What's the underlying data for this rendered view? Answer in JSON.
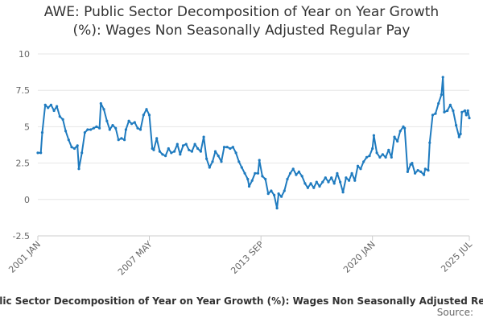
{
  "chart_data": {
    "type": "line",
    "title_line1": "AWE: Public Sector Decomposition of Year on Year Growth",
    "title_line2": "(%): Wages Non Seasonally Adjusted Regular Pay",
    "legend_label": "AWE: Public Sector Decomposition of Year on Year Growth (%): Wages Non Seasonally Adjusted Regular Pay",
    "source_label": "Source:",
    "ylim": [
      -2.5,
      10
    ],
    "y_ticks": [
      {
        "value": -2.5,
        "label": "-2.5"
      },
      {
        "value": 0,
        "label": "0"
      },
      {
        "value": 2.5,
        "label": "2.5"
      },
      {
        "value": 5,
        "label": "5"
      },
      {
        "value": 7.5,
        "label": "7.5"
      },
      {
        "value": 10,
        "label": "10"
      }
    ],
    "x_ticks": [
      {
        "x": 2001.0,
        "label": "2001 JAN"
      },
      {
        "x": 2007.33,
        "label": "2007 MAY"
      },
      {
        "x": 2013.67,
        "label": "2013 SEP"
      },
      {
        "x": 2020.0,
        "label": "2020 JAN"
      },
      {
        "x": 2025.5,
        "label": "2025 JUL"
      }
    ],
    "xlim": [
      2001.0,
      2025.5
    ],
    "color": "#1f7bbf",
    "series": [
      {
        "name": "AWE: Public Sector Decomposition of Year on Year Growth (%): Wages Non Seasonally Adjusted Regular Pay",
        "points": [
          [
            2001.0,
            3.2
          ],
          [
            2001.17,
            3.2
          ],
          [
            2001.25,
            4.6
          ],
          [
            2001.42,
            6.5
          ],
          [
            2001.58,
            6.3
          ],
          [
            2001.75,
            6.5
          ],
          [
            2001.92,
            6.1
          ],
          [
            2002.08,
            6.4
          ],
          [
            2002.25,
            5.7
          ],
          [
            2002.42,
            5.5
          ],
          [
            2002.58,
            4.7
          ],
          [
            2002.75,
            4.1
          ],
          [
            2002.92,
            3.6
          ],
          [
            2003.08,
            3.5
          ],
          [
            2003.25,
            3.7
          ],
          [
            2003.33,
            2.1
          ],
          [
            2003.5,
            3.2
          ],
          [
            2003.67,
            4.6
          ],
          [
            2003.83,
            4.8
          ],
          [
            2004.0,
            4.8
          ],
          [
            2004.17,
            4.9
          ],
          [
            2004.33,
            5.0
          ],
          [
            2004.5,
            4.9
          ],
          [
            2004.58,
            6.6
          ],
          [
            2004.75,
            6.2
          ],
          [
            2004.92,
            5.4
          ],
          [
            2005.08,
            4.8
          ],
          [
            2005.25,
            5.1
          ],
          [
            2005.42,
            4.9
          ],
          [
            2005.58,
            4.1
          ],
          [
            2005.75,
            4.2
          ],
          [
            2005.92,
            4.1
          ],
          [
            2006.0,
            4.8
          ],
          [
            2006.17,
            5.4
          ],
          [
            2006.33,
            5.2
          ],
          [
            2006.5,
            5.3
          ],
          [
            2006.67,
            4.9
          ],
          [
            2006.83,
            4.8
          ],
          [
            2007.0,
            5.8
          ],
          [
            2007.17,
            6.2
          ],
          [
            2007.33,
            5.8
          ],
          [
            2007.5,
            3.5
          ],
          [
            2007.58,
            3.4
          ],
          [
            2007.75,
            4.2
          ],
          [
            2007.92,
            3.3
          ],
          [
            2008.08,
            3.1
          ],
          [
            2008.25,
            3.0
          ],
          [
            2008.42,
            3.5
          ],
          [
            2008.58,
            3.2
          ],
          [
            2008.75,
            3.3
          ],
          [
            2008.92,
            3.8
          ],
          [
            2009.08,
            3.1
          ],
          [
            2009.25,
            3.7
          ],
          [
            2009.42,
            3.8
          ],
          [
            2009.58,
            3.4
          ],
          [
            2009.75,
            3.3
          ],
          [
            2009.92,
            3.8
          ],
          [
            2010.08,
            3.5
          ],
          [
            2010.25,
            3.3
          ],
          [
            2010.42,
            4.3
          ],
          [
            2010.58,
            2.8
          ],
          [
            2010.75,
            2.2
          ],
          [
            2010.92,
            2.6
          ],
          [
            2011.08,
            3.3
          ],
          [
            2011.25,
            3.0
          ],
          [
            2011.42,
            2.6
          ],
          [
            2011.58,
            3.6
          ],
          [
            2011.75,
            3.6
          ],
          [
            2011.92,
            3.5
          ],
          [
            2012.08,
            3.6
          ],
          [
            2012.25,
            3.2
          ],
          [
            2012.42,
            2.6
          ],
          [
            2012.58,
            2.2
          ],
          [
            2012.75,
            1.8
          ],
          [
            2012.92,
            1.4
          ],
          [
            2013.0,
            0.9
          ],
          [
            2013.17,
            1.3
          ],
          [
            2013.33,
            1.8
          ],
          [
            2013.5,
            1.8
          ],
          [
            2013.58,
            2.7
          ],
          [
            2013.75,
            1.6
          ],
          [
            2013.92,
            1.4
          ],
          [
            2014.08,
            0.4
          ],
          [
            2014.25,
            0.6
          ],
          [
            2014.42,
            0.3
          ],
          [
            2014.58,
            -0.6
          ],
          [
            2014.67,
            0.4
          ],
          [
            2014.83,
            0.2
          ],
          [
            2015.0,
            0.6
          ],
          [
            2015.17,
            1.4
          ],
          [
            2015.33,
            1.8
          ],
          [
            2015.5,
            2.1
          ],
          [
            2015.67,
            1.7
          ],
          [
            2015.83,
            1.9
          ],
          [
            2016.0,
            1.6
          ],
          [
            2016.17,
            1.1
          ],
          [
            2016.33,
            0.8
          ],
          [
            2016.5,
            1.1
          ],
          [
            2016.67,
            0.8
          ],
          [
            2016.83,
            1.2
          ],
          [
            2017.0,
            0.9
          ],
          [
            2017.17,
            1.2
          ],
          [
            2017.33,
            1.5
          ],
          [
            2017.5,
            1.2
          ],
          [
            2017.67,
            1.5
          ],
          [
            2017.83,
            1.1
          ],
          [
            2018.0,
            1.8
          ],
          [
            2018.17,
            1.2
          ],
          [
            2018.33,
            0.5
          ],
          [
            2018.5,
            1.5
          ],
          [
            2018.67,
            1.3
          ],
          [
            2018.83,
            1.8
          ],
          [
            2019.0,
            1.3
          ],
          [
            2019.17,
            2.3
          ],
          [
            2019.33,
            2.1
          ],
          [
            2019.5,
            2.6
          ],
          [
            2019.67,
            2.9
          ],
          [
            2019.83,
            3.0
          ],
          [
            2020.0,
            3.5
          ],
          [
            2020.08,
            4.4
          ],
          [
            2020.25,
            3.2
          ],
          [
            2020.42,
            2.9
          ],
          [
            2020.58,
            3.1
          ],
          [
            2020.75,
            2.9
          ],
          [
            2020.92,
            3.4
          ],
          [
            2021.08,
            2.9
          ],
          [
            2021.25,
            4.3
          ],
          [
            2021.42,
            4.0
          ],
          [
            2021.58,
            4.7
          ],
          [
            2021.75,
            5.0
          ],
          [
            2021.83,
            4.9
          ],
          [
            2022.0,
            1.9
          ],
          [
            2022.17,
            2.4
          ],
          [
            2022.25,
            2.5
          ],
          [
            2022.42,
            1.8
          ],
          [
            2022.58,
            2.0
          ],
          [
            2022.75,
            1.9
          ],
          [
            2022.92,
            1.7
          ],
          [
            2023.0,
            2.1
          ],
          [
            2023.17,
            2.0
          ],
          [
            2023.25,
            3.9
          ],
          [
            2023.42,
            5.8
          ],
          [
            2023.58,
            5.9
          ],
          [
            2023.75,
            6.6
          ],
          [
            2023.92,
            7.2
          ],
          [
            2024.0,
            8.4
          ],
          [
            2024.08,
            6.0
          ],
          [
            2024.25,
            6.1
          ],
          [
            2024.42,
            6.5
          ],
          [
            2024.58,
            6.1
          ],
          [
            2024.75,
            5.1
          ],
          [
            2024.92,
            4.3
          ],
          [
            2025.0,
            4.5
          ],
          [
            2025.08,
            6.0
          ],
          [
            2025.25,
            6.1
          ],
          [
            2025.33,
            5.8
          ],
          [
            2025.42,
            6.1
          ],
          [
            2025.5,
            5.6
          ]
        ]
      }
    ]
  }
}
